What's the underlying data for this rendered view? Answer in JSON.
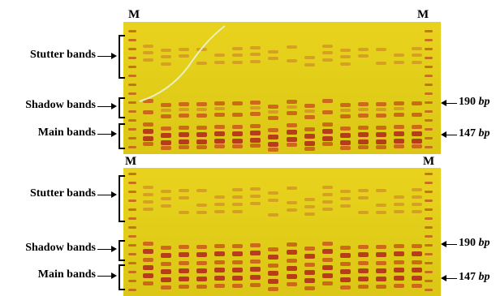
{
  "marker_label": "M",
  "bands": {
    "stutter": "Stutter bands",
    "shadow": "Shadow bands",
    "main": "Main bands"
  },
  "sizes": {
    "upper": "190",
    "lower": "147",
    "unit": "bp"
  },
  "colors": {
    "gel": "#e3cf1a",
    "band": "#c8581a",
    "band_strong": "#b4361a"
  }
}
